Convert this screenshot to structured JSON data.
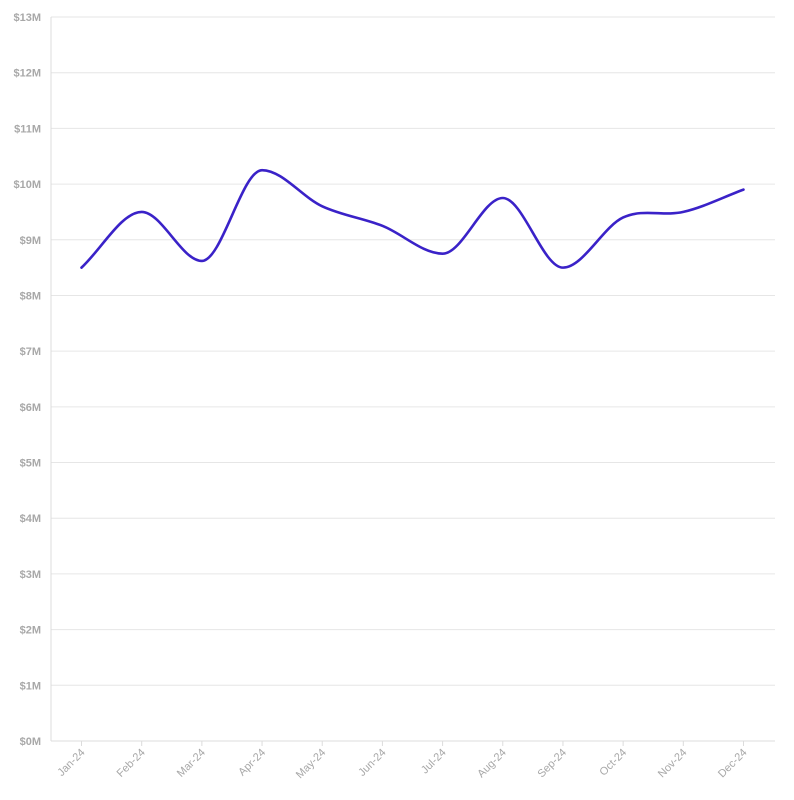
{
  "chart_data": {
    "type": "line",
    "categories": [
      "Jan-24",
      "Feb-24",
      "Mar-24",
      "Apr-24",
      "May-24",
      "Jun-24",
      "Jul-24",
      "Aug-24",
      "Sep-24",
      "Oct-24",
      "Nov-24",
      "Dec-24"
    ],
    "series": [
      {
        "values": [
          8.5,
          9.5,
          8.62,
          10.25,
          9.6,
          9.25,
          8.75,
          9.75,
          8.5,
          9.4,
          9.5,
          9.9
        ]
      }
    ],
    "y_ticks": [
      {
        "value": 0,
        "label": "$0M"
      },
      {
        "value": 1,
        "label": "$1M"
      },
      {
        "value": 2,
        "label": "$2M"
      },
      {
        "value": 3,
        "label": "$3M"
      },
      {
        "value": 4,
        "label": "$4M"
      },
      {
        "value": 5,
        "label": "$5M"
      },
      {
        "value": 6,
        "label": "$6M"
      },
      {
        "value": 7,
        "label": "$7M"
      },
      {
        "value": 8,
        "label": "$8M"
      },
      {
        "value": 9,
        "label": "$9M"
      },
      {
        "value": 10,
        "label": "$10M"
      },
      {
        "value": 11,
        "label": "$11M"
      },
      {
        "value": 12,
        "label": "$12M"
      },
      {
        "value": 13,
        "label": "$13M"
      }
    ],
    "ylim": [
      0,
      13
    ],
    "title": "",
    "xlabel": "",
    "ylabel": "",
    "grid": true,
    "colors": {
      "line": "#3a22c8"
    }
  }
}
